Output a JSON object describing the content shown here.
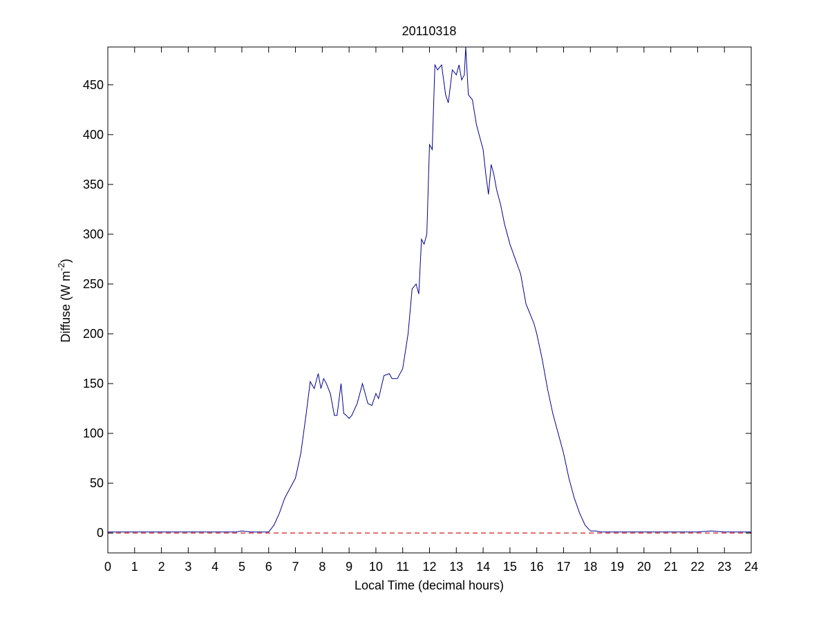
{
  "chart_data": {
    "type": "line",
    "title": "20110318",
    "xlabel": "Local Time (decimal hours)",
    "ylabel_main": "Diffuse (W m",
    "ylabel_sup": "-2",
    "ylabel_close": ")",
    "xlim": [
      0,
      24
    ],
    "ylim": [
      -20,
      488
    ],
    "xticks": [
      0,
      1,
      2,
      3,
      4,
      5,
      6,
      7,
      8,
      9,
      10,
      11,
      12,
      13,
      14,
      15,
      16,
      17,
      18,
      19,
      20,
      21,
      22,
      23,
      24
    ],
    "yticks": [
      0,
      50,
      100,
      150,
      200,
      250,
      300,
      350,
      400,
      450
    ],
    "grid": false,
    "series": [
      {
        "color": "#00008b",
        "style": "solid",
        "x": [
          0,
          4.8,
          5.0,
          5.3,
          5.6,
          6.0,
          6.2,
          6.4,
          6.6,
          6.8,
          7.0,
          7.2,
          7.4,
          7.55,
          7.7,
          7.85,
          7.95,
          8.05,
          8.15,
          8.3,
          8.45,
          8.55,
          8.7,
          8.8,
          8.9,
          9.0,
          9.1,
          9.3,
          9.5,
          9.7,
          9.85,
          10.0,
          10.1,
          10.3,
          10.5,
          10.6,
          10.8,
          11.0,
          11.2,
          11.35,
          11.5,
          11.6,
          11.7,
          11.8,
          11.9,
          12.0,
          12.1,
          12.2,
          12.3,
          12.45,
          12.6,
          12.7,
          12.85,
          13.0,
          13.1,
          13.2,
          13.3,
          13.35,
          13.45,
          13.6,
          13.75,
          13.9,
          14.0,
          14.1,
          14.2,
          14.3,
          14.4,
          14.5,
          14.65,
          14.8,
          15.0,
          15.2,
          15.4,
          15.6,
          15.75,
          15.9,
          16.0,
          16.2,
          16.4,
          16.6,
          16.8,
          17.0,
          17.2,
          17.4,
          17.6,
          17.8,
          18.0,
          18.2,
          18.4,
          18.6,
          19.0,
          19.5,
          20.0,
          21.0,
          22.0,
          22.5,
          23.0,
          24.0
        ],
        "y": [
          1,
          1,
          2,
          1,
          1,
          1,
          8,
          20,
          35,
          45,
          55,
          80,
          120,
          152,
          145,
          160,
          145,
          155,
          150,
          140,
          118,
          118,
          150,
          120,
          118,
          115,
          118,
          130,
          150,
          130,
          128,
          140,
          135,
          158,
          160,
          155,
          155,
          165,
          200,
          245,
          250,
          240,
          295,
          290,
          300,
          390,
          385,
          470,
          465,
          470,
          440,
          432,
          465,
          460,
          470,
          455,
          460,
          488,
          440,
          435,
          410,
          395,
          385,
          360,
          340,
          370,
          360,
          345,
          330,
          310,
          290,
          275,
          260,
          230,
          220,
          210,
          200,
          175,
          145,
          120,
          100,
          80,
          55,
          35,
          20,
          8,
          2,
          2,
          1,
          1,
          1,
          1,
          1,
          1,
          1,
          2,
          1,
          1
        ]
      }
    ],
    "reference_line": {
      "y": 0,
      "color": "#cc0000",
      "style": "dashed"
    }
  }
}
